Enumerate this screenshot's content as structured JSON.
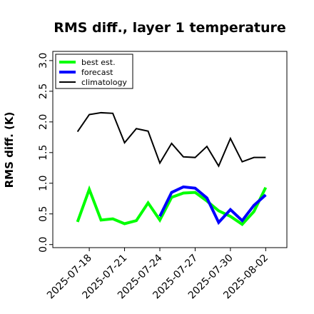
{
  "chart_data": {
    "type": "line",
    "title": "RMS diff., layer 1 temperature",
    "ylabel": "RMS diff. (K)",
    "xlabel": "",
    "ylim": [
      -0.05,
      3.15
    ],
    "y_ticks": [
      "0.0",
      "0.5",
      "1.0",
      "1.5",
      "2.0",
      "2.5",
      "3.0"
    ],
    "y_tick_values": [
      0.0,
      0.5,
      1.0,
      1.5,
      2.0,
      2.5,
      3.0
    ],
    "x_ticks": [
      "2025-07-18",
      "2025-07-21",
      "2025-07-24",
      "2025-07-27",
      "2025-07-30",
      "2025-08-02"
    ],
    "x_tick_days": [
      0,
      3,
      6,
      9,
      12,
      15
    ],
    "highlight_tick": "2025-07-24",
    "highlight_color": "#228B22",
    "xlim_days": [
      -3.1,
      16.8
    ],
    "x": [
      "2025-07-17",
      "2025-07-18",
      "2025-07-19",
      "2025-07-20",
      "2025-07-21",
      "2025-07-22",
      "2025-07-23",
      "2025-07-24",
      "2025-07-25",
      "2025-07-26",
      "2025-07-27",
      "2025-07-28",
      "2025-07-29",
      "2025-07-30",
      "2025-07-31",
      "2025-08-01",
      "2025-08-02"
    ],
    "series": [
      {
        "name": "best est.",
        "color": "#00ff00",
        "linewidth": 4,
        "values": [
          0.37,
          0.9,
          0.4,
          0.42,
          0.34,
          0.39,
          0.68,
          0.4,
          0.77,
          0.84,
          0.85,
          0.71,
          0.55,
          0.46,
          0.33,
          0.54,
          0.93
        ]
      },
      {
        "name": "forecast",
        "color": "#0000ff",
        "linewidth": 4,
        "values": [
          null,
          null,
          null,
          null,
          null,
          null,
          null,
          0.46,
          0.85,
          0.94,
          0.92,
          0.76,
          0.36,
          0.57,
          0.39,
          0.64,
          0.81
        ]
      },
      {
        "name": "climatology",
        "color": "#000000",
        "linewidth": 2,
        "values": [
          1.84,
          2.12,
          2.15,
          2.14,
          1.66,
          1.89,
          1.85,
          1.33,
          1.65,
          1.43,
          1.42,
          1.6,
          1.28,
          1.73,
          1.35,
          1.42,
          1.42
        ]
      }
    ],
    "legend": {
      "placement": "top-left"
    },
    "grid": false
  }
}
